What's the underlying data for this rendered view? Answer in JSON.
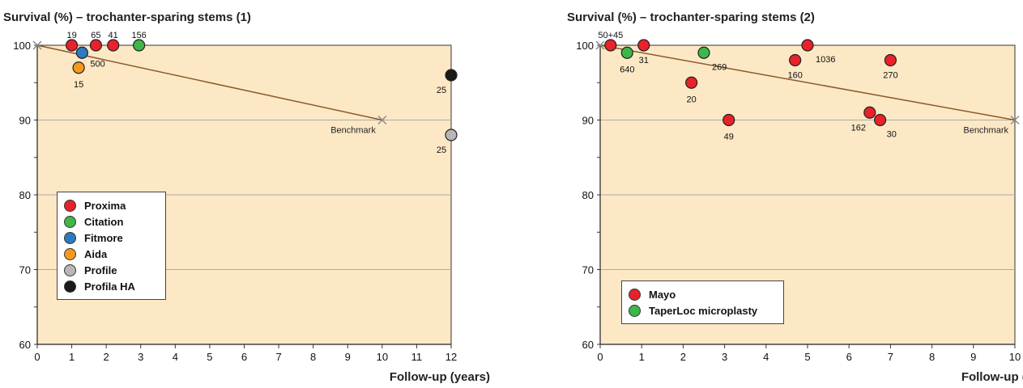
{
  "chart_data": [
    {
      "type": "scatter",
      "title": "Survival (%) – trochanter-sparing stems (1)",
      "xlabel": "Follow-up (years)",
      "ylabel": "",
      "xlim": [
        0,
        12
      ],
      "ylim": [
        60,
        100
      ],
      "xticks": [
        "0",
        "1",
        "2",
        "3",
        "4",
        "5",
        "6",
        "7",
        "8",
        "9",
        "10",
        "11",
        "12"
      ],
      "yticks": [
        "60",
        "70",
        "80",
        "90",
        "100"
      ],
      "grid": true,
      "legend_position": "bottom-left",
      "benchmark": {
        "label": "Benchmark",
        "from": [
          0,
          100
        ],
        "to": [
          10,
          90
        ]
      },
      "series": [
        {
          "name": "Proxima",
          "color": "#e8212b",
          "points": [
            {
              "x": 1.0,
              "y": 100,
              "label": "19"
            },
            {
              "x": 1.7,
              "y": 100,
              "label": "65"
            },
            {
              "x": 2.2,
              "y": 100,
              "label": "41"
            }
          ]
        },
        {
          "name": "Citation",
          "color": "#3db64a",
          "points": [
            {
              "x": 2.95,
              "y": 100,
              "label": "156"
            }
          ]
        },
        {
          "name": "Fitmore",
          "color": "#2e79bf",
          "points": [
            {
              "x": 1.3,
              "y": 99,
              "label": "500"
            }
          ]
        },
        {
          "name": "Aida",
          "color": "#f39a1e",
          "points": [
            {
              "x": 1.2,
              "y": 97,
              "label": "15"
            }
          ]
        },
        {
          "name": "Profile",
          "color": "#b7b7b7",
          "points": [
            {
              "x": 12,
              "y": 88,
              "label": "25"
            }
          ]
        },
        {
          "name": "Profila HA",
          "color": "#1a1a1a",
          "points": [
            {
              "x": 12,
              "y": 96,
              "label": "25"
            }
          ]
        }
      ]
    },
    {
      "type": "scatter",
      "title": "Survival (%) – trochanter-sparing stems (2)",
      "xlabel": "Follow-up (years)",
      "ylabel": "",
      "xlim": [
        0,
        10
      ],
      "ylim": [
        60,
        100
      ],
      "xticks": [
        "0",
        "1",
        "2",
        "3",
        "4",
        "5",
        "6",
        "7",
        "8",
        "9",
        "10"
      ],
      "yticks": [
        "60",
        "70",
        "80",
        "90",
        "100"
      ],
      "grid": true,
      "legend_position": "bottom-left",
      "benchmark": {
        "label": "Benchmark",
        "from": [
          0,
          100
        ],
        "to": [
          10,
          90
        ]
      },
      "series": [
        {
          "name": "Mayo",
          "color": "#e8212b",
          "points": [
            {
              "x": 0.25,
              "y": 100,
              "label": "50+45"
            },
            {
              "x": 1.05,
              "y": 100,
              "label": "31"
            },
            {
              "x": 2.2,
              "y": 95,
              "label": "20"
            },
            {
              "x": 3.1,
              "y": 90,
              "label": "49"
            },
            {
              "x": 4.7,
              "y": 98,
              "label": "160"
            },
            {
              "x": 5.0,
              "y": 100,
              "label": "1036"
            },
            {
              "x": 7.0,
              "y": 98,
              "label": "270"
            },
            {
              "x": 6.5,
              "y": 91,
              "label": "162"
            },
            {
              "x": 6.75,
              "y": 90,
              "label": "30"
            }
          ]
        },
        {
          "name": "TaperLoc microplasty",
          "color": "#3db64a",
          "points": [
            {
              "x": 0.65,
              "y": 99,
              "label": "640"
            },
            {
              "x": 2.5,
              "y": 99,
              "label": "269"
            }
          ]
        }
      ]
    }
  ]
}
